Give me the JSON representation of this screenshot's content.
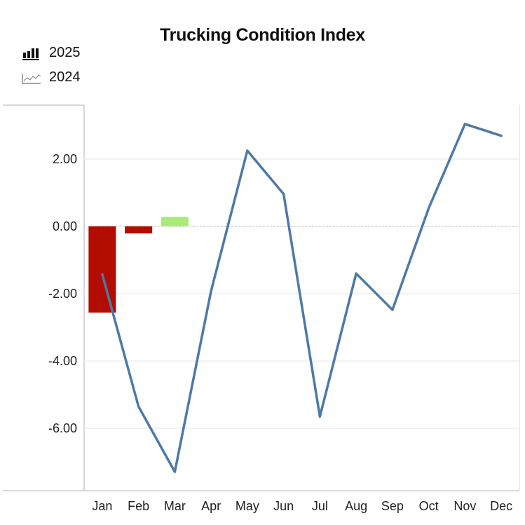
{
  "chart_data": {
    "type": "bar+line",
    "title": "Trucking Condition Index",
    "xlabel": "",
    "ylabel": "",
    "ylim": [
      -7.85,
      3.6
    ],
    "yticks": [
      -6,
      -4,
      -2,
      0,
      2
    ],
    "ytick_labels": [
      "-6.00",
      "-4.00",
      "-2.00",
      "0.00",
      "2.00"
    ],
    "categories": [
      "Jan",
      "Feb",
      "Mar",
      "Apr",
      "May",
      "Jun",
      "Jul",
      "Aug",
      "Sep",
      "Oct",
      "Nov",
      "Dec"
    ],
    "legend_position": "top-left",
    "grid": true,
    "series": [
      {
        "name": "2025",
        "kind": "bar",
        "values": [
          -2.56,
          -0.21,
          0.28,
          null,
          null,
          null,
          null,
          null,
          null,
          null,
          null,
          null
        ]
      },
      {
        "name": "2024",
        "kind": "line",
        "color": "#4e79a7",
        "values": [
          -1.42,
          -5.35,
          -7.29,
          -1.92,
          2.25,
          0.96,
          -5.65,
          -1.4,
          -2.48,
          0.54,
          3.04,
          2.69
        ]
      }
    ],
    "colors": {
      "negative": "#b30c00",
      "positive": "#aaea78",
      "line": "#4e79a7"
    }
  }
}
